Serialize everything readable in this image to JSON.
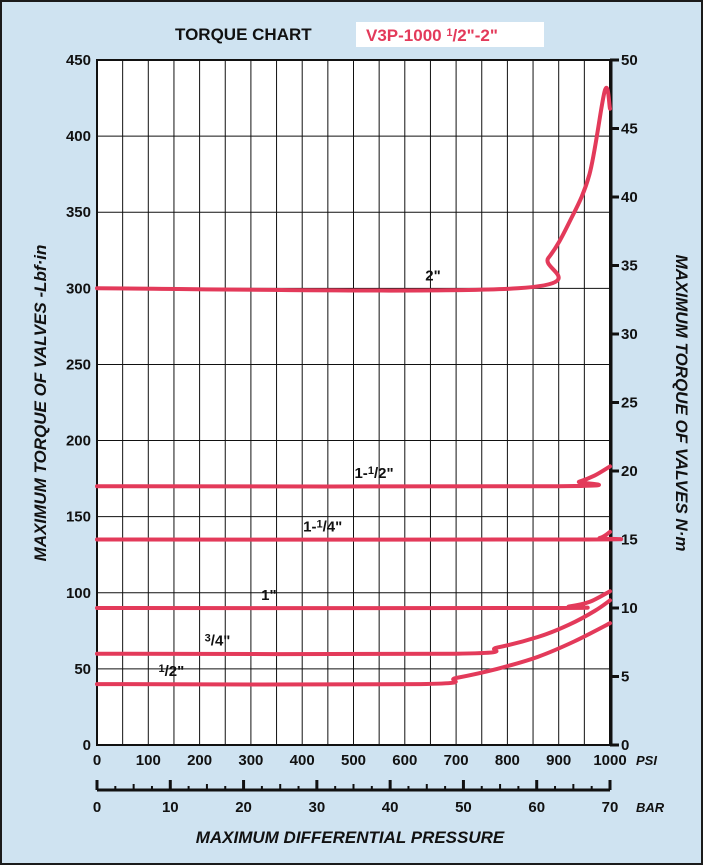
{
  "chart_data": {
    "type": "line",
    "title": "TORQUE CHART",
    "subtitle": "V3P-1000 1/2\"-2\"",
    "ylabel_left": "MAXIMUM TORQUE OF VALVES -Lbf·in",
    "ylabel_right": "MAXIMUM TORQUE OF VALVES N·m",
    "xlabel": "MAXIMUM DIFFERENTIAL PRESSURE",
    "x_unit_psi": "PSI",
    "x_unit_bar": "BAR",
    "xlim_psi": [
      0,
      1000
    ],
    "xlim_bar": [
      0,
      70
    ],
    "ylim_lbf": [
      0,
      450
    ],
    "ylim_nm": [
      0,
      50
    ],
    "x_ticks_psi": [
      "0",
      "100",
      "200",
      "300",
      "400",
      "500",
      "600",
      "700",
      "800",
      "900",
      "1000"
    ],
    "x_ticks_bar": [
      "0",
      "10",
      "20",
      "30",
      "40",
      "50",
      "60",
      "70"
    ],
    "y_ticks_left": [
      "0",
      "50",
      "100",
      "150",
      "200",
      "250",
      "300",
      "350",
      "400",
      "450"
    ],
    "y_ticks_right": [
      "0",
      "5",
      "10",
      "15",
      "20",
      "25",
      "30",
      "35",
      "40",
      "45",
      "50"
    ],
    "grid": true,
    "line_color": "#e33a5a",
    "series": [
      {
        "name": "2\"",
        "x": [
          0,
          820,
          880,
          920,
          960,
          990,
          1000
        ],
        "y": [
          300,
          300,
          320,
          343,
          375,
          430,
          418
        ]
      },
      {
        "name": "1-1/2\"",
        "x": [
          0,
          900,
          940,
          970,
          1000
        ],
        "y": [
          170,
          170,
          173,
          177,
          183
        ]
      },
      {
        "name": "1-1/4\"",
        "x": [
          0,
          940,
          980,
          1000
        ],
        "y": [
          135,
          135,
          136,
          140
        ]
      },
      {
        "name": "1\"",
        "x": [
          0,
          880,
          920,
          960,
          1000
        ],
        "y": [
          90,
          90,
          91,
          94,
          101
        ]
      },
      {
        "name": "3/4\"",
        "x": [
          0,
          700,
          780,
          860,
          920,
          970,
          1000
        ],
        "y": [
          60,
          60,
          64,
          71,
          79,
          88,
          95
        ]
      },
      {
        "name": "1/2\"",
        "x": [
          0,
          630,
          700,
          780,
          860,
          930,
          1000
        ],
        "y": [
          40,
          40,
          44,
          50,
          58,
          68,
          80
        ]
      }
    ],
    "labels": [
      {
        "parts": [
          [
            "2\"",
            false
          ]
        ],
        "x": 655,
        "y": 300
      },
      {
        "parts": [
          [
            "1-",
            false
          ],
          [
            "1",
            true
          ],
          [
            "/2\"",
            false
          ]
        ],
        "x": 540,
        "y": 170
      },
      {
        "parts": [
          [
            "1-",
            false
          ],
          [
            "1",
            true
          ],
          [
            "/4\"",
            false
          ]
        ],
        "x": 440,
        "y": 135
      },
      {
        "parts": [
          [
            "1\"",
            false
          ]
        ],
        "x": 335,
        "y": 90
      },
      {
        "parts": [
          [
            "3",
            true
          ],
          [
            "/4\"",
            false
          ]
        ],
        "x": 235,
        "y": 60
      },
      {
        "parts": [
          [
            "1",
            true
          ],
          [
            "/2\"",
            false
          ]
        ],
        "x": 145,
        "y": 40
      }
    ]
  }
}
